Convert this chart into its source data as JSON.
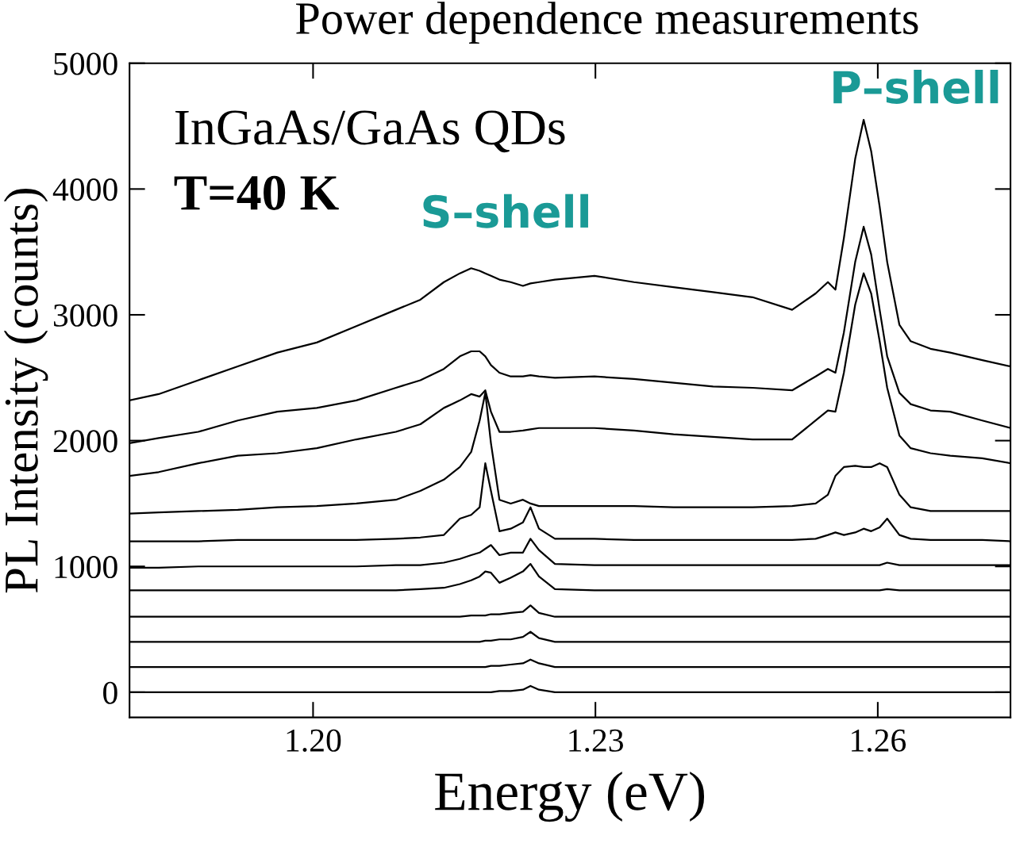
{
  "chart_data": {
    "type": "line",
    "title": "Power dependence measurements",
    "xlabel": "Energy (eV)",
    "ylabel": "PL Intensity (counts)",
    "x": [
      1.1805,
      1.1836,
      1.1878,
      1.192,
      1.1962,
      1.2004,
      1.2046,
      1.2088,
      1.2114,
      1.2139,
      1.2156,
      1.2168,
      1.2177,
      1.2183,
      1.2189,
      1.2198,
      1.221,
      1.2223,
      1.2231,
      1.224,
      1.2257,
      1.2299,
      1.2341,
      1.2383,
      1.2425,
      1.2467,
      1.2509,
      1.2534,
      1.2547,
      1.2555,
      1.2564,
      1.2576,
      1.2585,
      1.2593,
      1.2602,
      1.261,
      1.2623,
      1.2635,
      1.2656,
      1.2677,
      1.2711,
      1.2741
    ],
    "series": [
      {
        "color": "#000000",
        "values": [
          2320,
          2370,
          2480,
          2590,
          2700,
          2780,
          2910,
          3040,
          3120,
          3260,
          3330,
          3370,
          3350,
          3330,
          3310,
          3280,
          3260,
          3230,
          3250,
          3260,
          3280,
          3310,
          3260,
          3220,
          3180,
          3140,
          3040,
          3170,
          3260,
          3200,
          3610,
          4240,
          4550,
          4300,
          3860,
          3420,
          2920,
          2790,
          2730,
          2700,
          2640,
          2590
        ]
      },
      {
        "color": "#000000",
        "values": [
          1980,
          2020,
          2070,
          2160,
          2230,
          2260,
          2320,
          2420,
          2480,
          2570,
          2670,
          2710,
          2710,
          2670,
          2600,
          2540,
          2510,
          2510,
          2520,
          2510,
          2500,
          2510,
          2490,
          2460,
          2430,
          2420,
          2400,
          2510,
          2570,
          2540,
          2860,
          3420,
          3700,
          3480,
          3040,
          2670,
          2380,
          2290,
          2240,
          2230,
          2160,
          2100
        ]
      },
      {
        "color": "#000000",
        "values": [
          1720,
          1750,
          1820,
          1880,
          1900,
          1940,
          2010,
          2070,
          2130,
          2260,
          2320,
          2370,
          2350,
          2400,
          2230,
          2070,
          2070,
          2080,
          2090,
          2100,
          2100,
          2100,
          2080,
          2050,
          2030,
          2010,
          2010,
          2160,
          2240,
          2230,
          2540,
          3080,
          3330,
          3170,
          2790,
          2420,
          2040,
          1940,
          1900,
          1880,
          1860,
          1820
        ]
      },
      {
        "color": "#000000",
        "values": [
          1420,
          1430,
          1440,
          1450,
          1470,
          1480,
          1500,
          1530,
          1600,
          1690,
          1790,
          1910,
          2160,
          2380,
          1980,
          1530,
          1500,
          1530,
          1500,
          1480,
          1480,
          1480,
          1480,
          1470,
          1470,
          1470,
          1480,
          1500,
          1570,
          1720,
          1790,
          1800,
          1790,
          1790,
          1820,
          1790,
          1570,
          1470,
          1440,
          1440,
          1440,
          1440
        ]
      },
      {
        "color": "#000000",
        "values": [
          1200,
          1200,
          1200,
          1210,
          1210,
          1210,
          1210,
          1220,
          1230,
          1250,
          1380,
          1410,
          1470,
          1820,
          1600,
          1280,
          1300,
          1350,
          1470,
          1300,
          1220,
          1220,
          1210,
          1210,
          1210,
          1210,
          1210,
          1220,
          1250,
          1270,
          1250,
          1270,
          1300,
          1280,
          1310,
          1380,
          1250,
          1220,
          1210,
          1210,
          1210,
          1200
        ]
      },
      {
        "color": "#000000",
        "values": [
          990,
          990,
          1000,
          1000,
          1000,
          1000,
          1000,
          1010,
          1010,
          1030,
          1060,
          1090,
          1110,
          1140,
          1170,
          1090,
          1110,
          1110,
          1220,
          1130,
          1020,
          1010,
          1010,
          1010,
          1010,
          1010,
          1010,
          1010,
          1010,
          1010,
          1010,
          1010,
          1010,
          1010,
          1010,
          1030,
          1010,
          1010,
          1010,
          1010,
          1010,
          1010
        ]
      },
      {
        "color": "#000000",
        "values": [
          810,
          810,
          810,
          810,
          810,
          810,
          810,
          810,
          820,
          830,
          860,
          890,
          920,
          960,
          950,
          870,
          910,
          960,
          1020,
          920,
          820,
          810,
          810,
          810,
          810,
          810,
          810,
          810,
          810,
          810,
          810,
          810,
          810,
          810,
          810,
          820,
          810,
          810,
          810,
          810,
          810,
          810
        ]
      },
      {
        "color": "#000000",
        "values": [
          600,
          600,
          600,
          600,
          600,
          600,
          600,
          600,
          600,
          600,
          600,
          610,
          610,
          610,
          620,
          620,
          630,
          640,
          690,
          630,
          600,
          600,
          600,
          600,
          600,
          600,
          600,
          600,
          600,
          600,
          600,
          600,
          600,
          600,
          600,
          600,
          600,
          600,
          600,
          600,
          600,
          600
        ]
      },
      {
        "color": "#000000",
        "values": [
          400,
          400,
          400,
          400,
          400,
          400,
          400,
          400,
          400,
          400,
          400,
          400,
          400,
          410,
          410,
          420,
          420,
          440,
          480,
          430,
          400,
          400,
          400,
          400,
          400,
          400,
          400,
          400,
          400,
          400,
          400,
          400,
          400,
          400,
          400,
          400,
          400,
          400,
          400,
          400,
          400,
          400
        ]
      },
      {
        "color": "#000000",
        "values": [
          200,
          200,
          200,
          200,
          200,
          200,
          200,
          200,
          200,
          200,
          200,
          200,
          200,
          200,
          210,
          210,
          220,
          230,
          260,
          230,
          200,
          200,
          200,
          200,
          200,
          200,
          200,
          200,
          200,
          200,
          200,
          200,
          200,
          200,
          200,
          200,
          200,
          200,
          200,
          200,
          200,
          200
        ]
      },
      {
        "color": "#000000",
        "values": [
          0,
          0,
          0,
          0,
          0,
          0,
          0,
          0,
          0,
          0,
          0,
          0,
          0,
          0,
          0,
          10,
          10,
          20,
          50,
          20,
          0,
          0,
          0,
          0,
          0,
          0,
          0,
          0,
          0,
          0,
          0,
          0,
          0,
          0,
          0,
          0,
          0,
          0,
          0,
          0,
          0,
          0
        ]
      }
    ],
    "xlim": [
      1.1805,
      1.2741
    ],
    "xticks": [
      {
        "value": 1.2,
        "label": "1.20"
      },
      {
        "value": 1.23,
        "label": "1.23"
      },
      {
        "value": 1.26,
        "label": "1.26"
      }
    ],
    "ylim": [
      -200,
      5000
    ],
    "yticks": [
      0,
      1000,
      2000,
      3000,
      4000,
      5000
    ],
    "annotations": [
      "InGaAs/GaAs QDs",
      "T=40 K",
      "S–shell",
      "P–shell"
    ],
    "grid": false,
    "marker": "none",
    "line_style": "solid"
  }
}
